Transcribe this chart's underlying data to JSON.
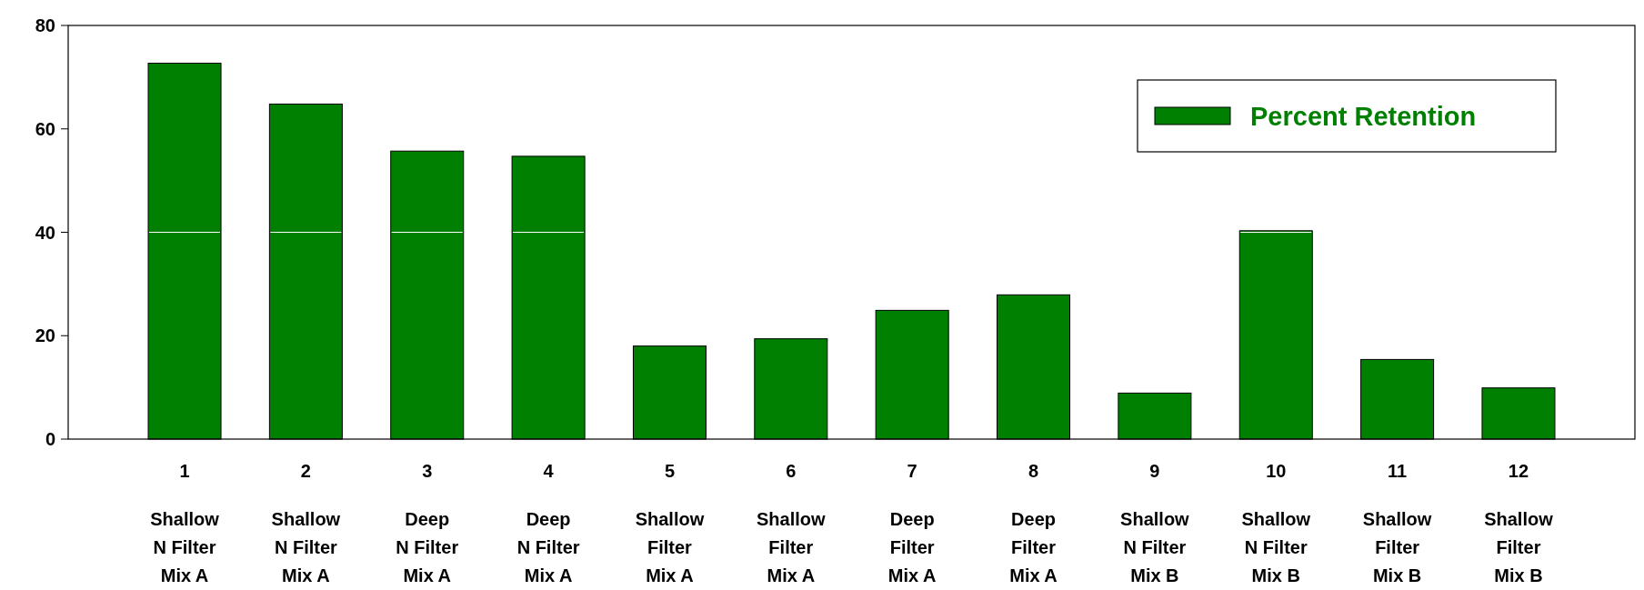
{
  "chart_data": {
    "type": "bar",
    "categories": [
      "1\nShallow\nN Filter\nMix A",
      "2\nShallow\nN Filter\nMix A",
      "3\nDeep\nN Filter\nMix A",
      "4\nDeep\nN Filter\nMix A",
      "5\nShallow\nFilter\nMix A",
      "6\nShallow\nFilter\nMix A",
      "7\nDeep\nFilter\nMix A",
      "8\nDeep\nFilter\nMix A",
      "9\nShallow\nN Filter\nMix B",
      "10\nShallow\nN Filter\nMix B",
      "11\nShallow\nFilter\nMix B",
      "12\nShallow\nFilter\nMix B"
    ],
    "series": [
      {
        "name": "Percent Retention",
        "color": "#008000",
        "values": [
          72.7,
          64.8,
          55.7,
          54.7,
          18.0,
          19.4,
          24.9,
          27.9,
          8.9,
          40.3,
          15.4,
          9.9
        ]
      }
    ],
    "ylim": [
      0,
      80
    ],
    "yticks": [
      0,
      20,
      40,
      60,
      80
    ],
    "ref_lines": [
      {
        "axis": "y",
        "value": 40,
        "color": "#ffffff"
      }
    ],
    "legend": "top right"
  }
}
